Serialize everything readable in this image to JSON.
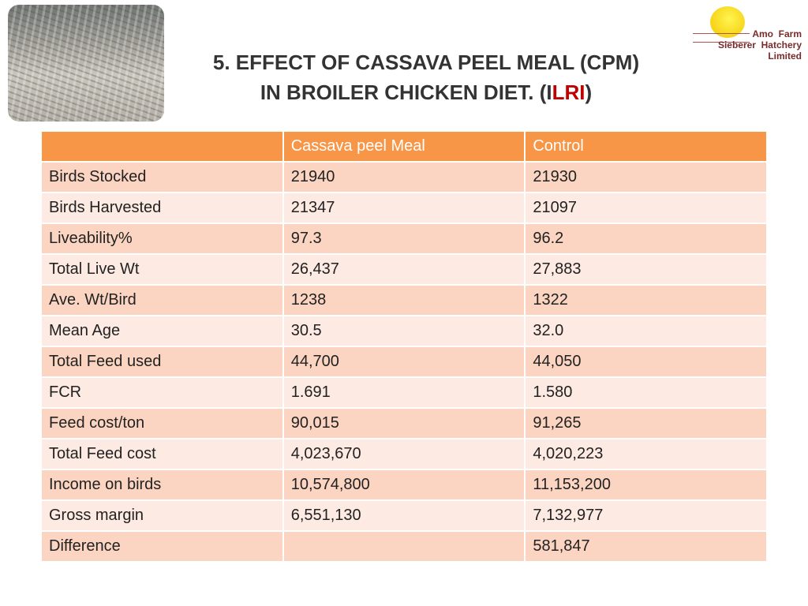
{
  "title": {
    "line1": "5. EFFECT OF CASSAVA PEEL MEAL (CPM)",
    "line2": [
      "IN BROILER CHICKEN DIET. (I",
      "LRI",
      ")"
    ]
  },
  "logo": [
    "Amo  Farm",
    "Sieberer  Hatchery",
    "Limited"
  ],
  "table": {
    "header": [
      "Cassava peel Meal",
      "Control"
    ],
    "rows": [
      [
        "Birds Stocked",
        "21940",
        "21930"
      ],
      [
        "Birds Harvested",
        "21347",
        "21097"
      ],
      [
        "Liveability%",
        "97.3",
        "96.2"
      ],
      [
        "Total Live Wt",
        "26,437",
        "27,883"
      ],
      [
        "Ave. Wt/Bird",
        "1238",
        "1322"
      ],
      [
        "Mean Age",
        "30.5",
        "32.0"
      ],
      [
        "Total Feed used",
        "44,700",
        "44,050"
      ],
      [
        "FCR",
        "1.691",
        "1.580"
      ],
      [
        "Feed cost/ton",
        "90,015",
        "91,265"
      ],
      [
        "Total Feed cost",
        "4,023,670",
        "4,020,223"
      ],
      [
        "Income on birds",
        "10,574,800",
        "11,153,200"
      ],
      [
        "Gross margin",
        "6,551,130",
        "7,132,977"
      ],
      [
        "Difference",
        null,
        "581,847"
      ]
    ]
  }
}
